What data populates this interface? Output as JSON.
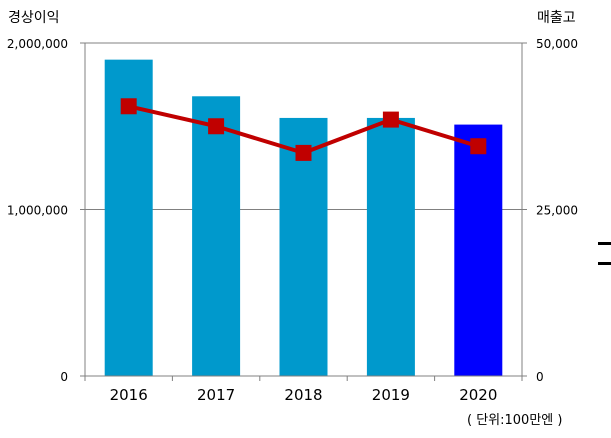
{
  "chart_data": {
    "type": "bar+line",
    "categories": [
      "2016",
      "2017",
      "2018",
      "2019",
      "2020"
    ],
    "series": [
      {
        "name": "경상이익",
        "type": "bar",
        "axis": "left",
        "values": [
          1900000,
          1680000,
          1550000,
          1550000,
          1510000
        ],
        "colors": [
          "#0099cc",
          "#0099cc",
          "#0099cc",
          "#0099cc",
          "#0000ff"
        ]
      },
      {
        "name": "매출고",
        "type": "line",
        "axis": "right",
        "values": [
          40500,
          37500,
          33500,
          38500,
          34500
        ],
        "color": "#c00000",
        "marker": "square"
      }
    ],
    "left_axis": {
      "title": "경상이익",
      "range": [
        0,
        2000000
      ],
      "ticks": [
        0,
        1000000,
        2000000
      ],
      "tick_labels": [
        "0",
        "1,000,000",
        "2,000,000"
      ]
    },
    "right_axis": {
      "title": "매출고",
      "range": [
        0,
        50000
      ],
      "ticks": [
        0,
        25000,
        50000
      ],
      "tick_labels": [
        "0",
        "25,000",
        "50,000"
      ]
    },
    "unit_note": "( 단위:100만엔 )",
    "gridlines": true
  }
}
